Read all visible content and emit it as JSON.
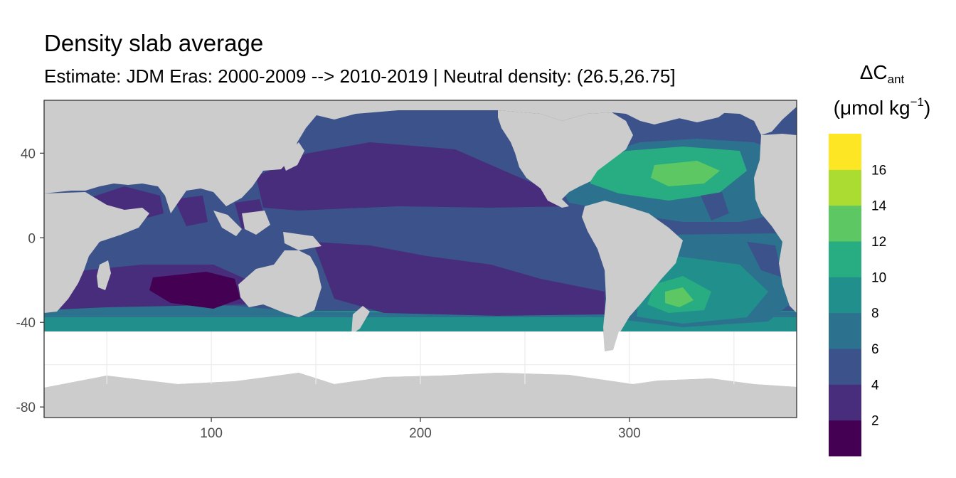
{
  "title": "Density slab average",
  "subtitle": "Estimate: JDM Eras: 2000-2009 --> 2010-2019 | Neutral density: (26.5,26.75]",
  "legend": {
    "title_main": "ΔC",
    "title_sub": "ant",
    "unit_pre": "(μmol kg",
    "unit_sup": "−1",
    "unit_post": ")",
    "breaks": [
      "2",
      "4",
      "6",
      "8",
      "10",
      "12",
      "14",
      "16"
    ],
    "colors": [
      "#440154",
      "#472D7B",
      "#3B528B",
      "#2C728E",
      "#21908C",
      "#27AD81",
      "#5DC863",
      "#AADC32",
      "#FDE725"
    ]
  },
  "colors": {
    "land": "#CCCCCC",
    "no_data": "#FFFFFF",
    "panel_border": "#333333",
    "grid": "#EBEBEB"
  },
  "chart_data": {
    "type": "heatmap",
    "xlim": [
      20,
      380
    ],
    "ylim": [
      -85,
      65
    ],
    "x_ticks": [
      "100",
      "200",
      "300"
    ],
    "y_ticks": [
      "40",
      "0",
      "-40",
      "-80"
    ],
    "xlabel": "",
    "ylabel": "",
    "grid": true,
    "legend_position": "right"
  }
}
